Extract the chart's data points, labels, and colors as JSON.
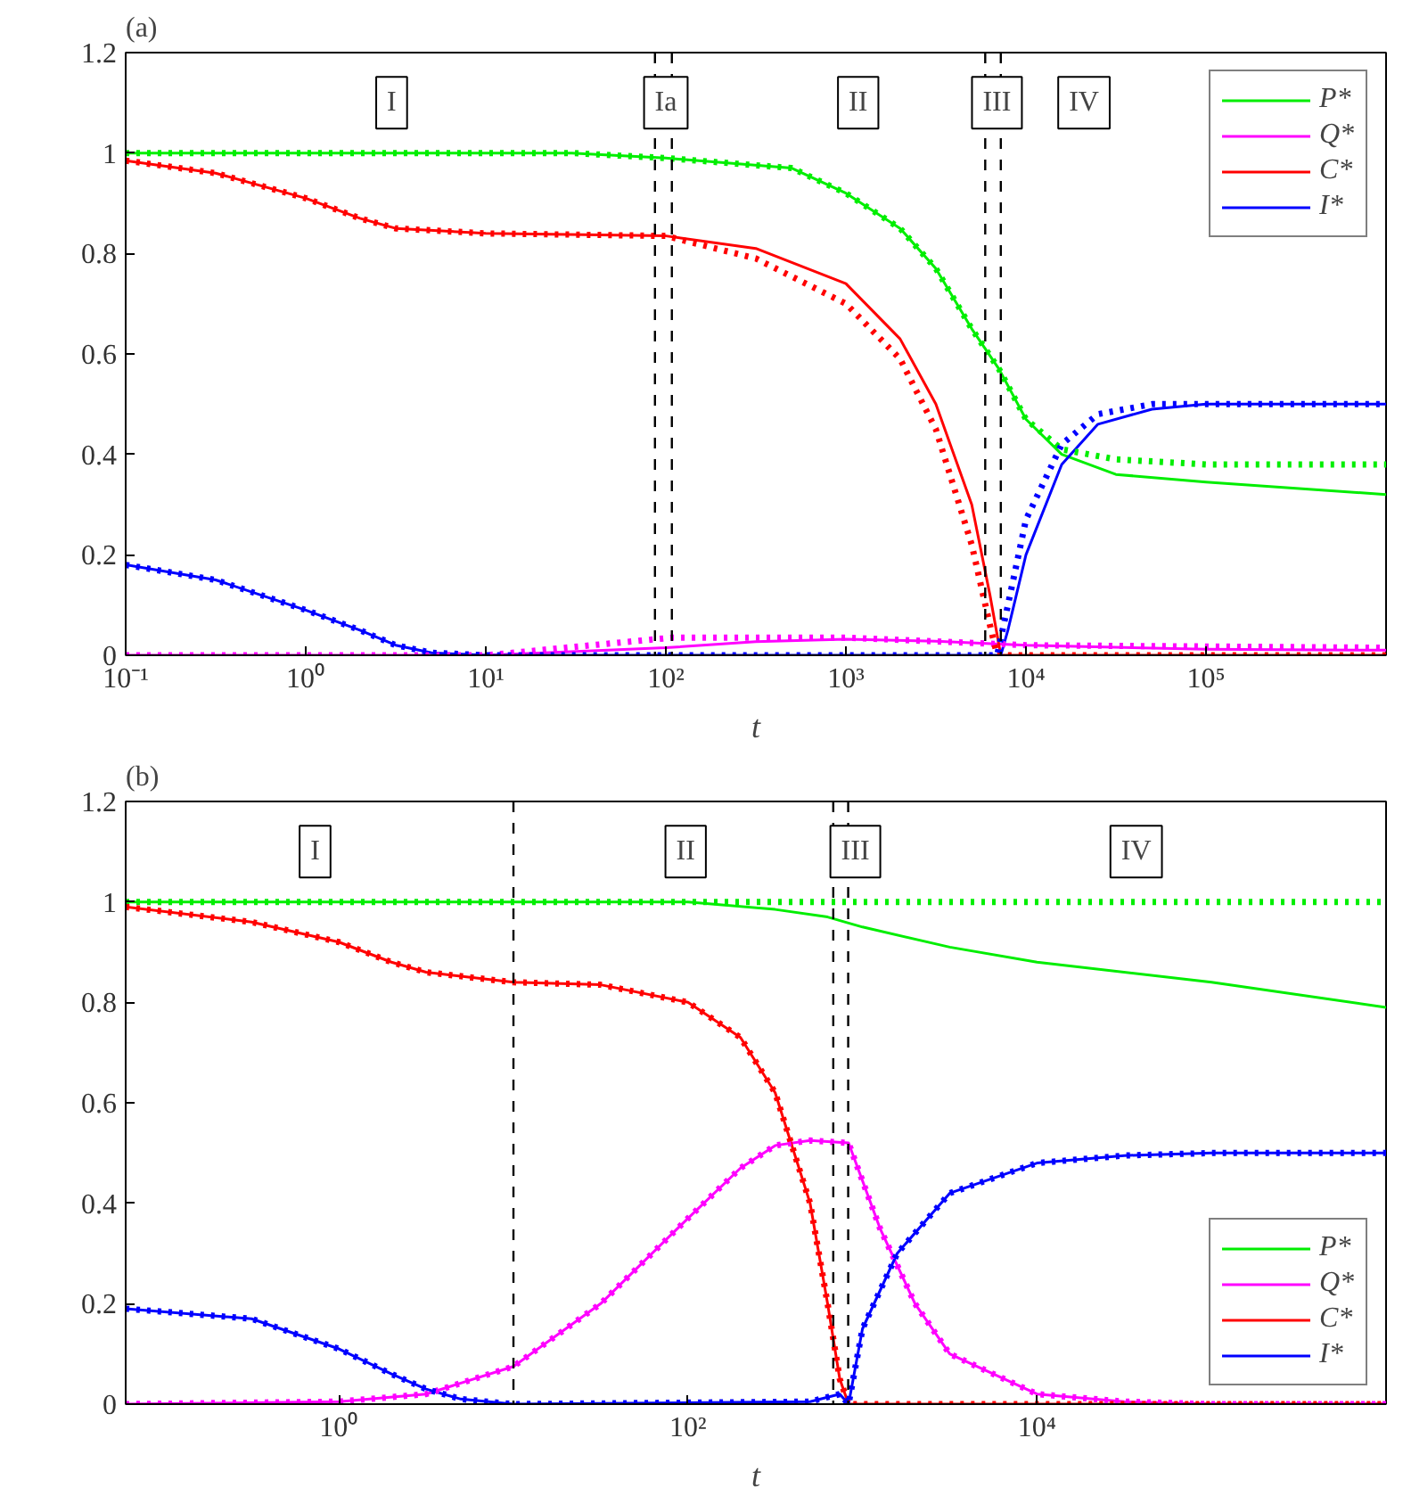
{
  "chart_data": [
    {
      "type": "line",
      "title": "(a)",
      "xlabel": "t",
      "log": "x",
      "grid": false,
      "legend": "top right",
      "xlim": [
        0.1,
        1000000
      ],
      "xticks": [
        {
          "value": 0.1,
          "label": "10⁻¹"
        },
        {
          "value": 1,
          "label": "10⁰"
        },
        {
          "value": 10,
          "label": "10¹"
        },
        {
          "value": 100,
          "label": "10²"
        },
        {
          "value": 1000,
          "label": "10³"
        },
        {
          "value": 10000,
          "label": "10⁴"
        },
        {
          "value": 100000,
          "label": "10⁵"
        }
      ],
      "ylim": [
        0,
        1.2
      ],
      "yticks": [
        0,
        0.2,
        0.4,
        0.6,
        0.8,
        1,
        1.2
      ],
      "ref_lines": [
        {
          "axis": "x",
          "value": 87,
          "line_style": "dashed",
          "color": "#000000"
        },
        {
          "axis": "x",
          "value": 108,
          "line_style": "dashed",
          "color": "#000000"
        },
        {
          "axis": "x",
          "value": 5940,
          "line_style": "dashed",
          "color": "#000000"
        },
        {
          "axis": "x",
          "value": 7250,
          "line_style": "dashed",
          "color": "#000000"
        }
      ],
      "annotations": [
        {
          "text": "I",
          "x": 3,
          "y": 1.1
        },
        {
          "text": "Ia",
          "x": 100,
          "y": 1.1
        },
        {
          "text": "II",
          "x": 1170,
          "y": 1.1
        },
        {
          "text": "III",
          "x": 6900,
          "y": 1.1
        },
        {
          "text": "IV",
          "x": 21000,
          "y": 1.1
        }
      ],
      "series": [
        {
          "name": "P*",
          "color": "#00ee00",
          "line_style": "solid",
          "x": [
            0.1,
            1,
            30,
            100,
            500,
            1000,
            2000,
            3160,
            5000,
            7080,
            10000,
            15800,
            31600,
            100000,
            1000000
          ],
          "values": [
            1,
            1,
            1,
            0.99,
            0.97,
            0.92,
            0.85,
            0.77,
            0.65,
            0.57,
            0.47,
            0.4,
            0.36,
            0.345,
            0.32
          ]
        },
        {
          "name": "Q*",
          "color": "#ff00ff",
          "line_style": "solid",
          "x": [
            0.1,
            10,
            100,
            316,
            1000,
            3160,
            10000,
            100000,
            1000000
          ],
          "values": [
            0,
            0,
            0.015,
            0.027,
            0.032,
            0.028,
            0.02,
            0.012,
            0.01
          ]
        },
        {
          "name": "C*",
          "color": "#ff0000",
          "line_style": "solid",
          "x": [
            0.1,
            0.316,
            1,
            2,
            3.16,
            10,
            100,
            316,
            1000,
            2000,
            3160,
            5000,
            6310,
            7250,
            1000000
          ],
          "values": [
            0.985,
            0.96,
            0.91,
            0.87,
            0.85,
            0.84,
            0.835,
            0.81,
            0.74,
            0.63,
            0.5,
            0.3,
            0.12,
            0,
            0
          ]
        },
        {
          "name": "I*",
          "color": "#0000ff",
          "line_style": "solid",
          "x": [
            0.1,
            0.316,
            1,
            2,
            3.16,
            5,
            10,
            7250,
            7940,
            10000,
            15800,
            25100,
            50100,
            100000,
            1000000
          ],
          "values": [
            0.18,
            0.15,
            0.09,
            0.05,
            0.02,
            0.005,
            0,
            0,
            0.05,
            0.2,
            0.38,
            0.46,
            0.49,
            0.5,
            0.5
          ]
        },
        {
          "color": "#00ee00",
          "line_style": "dotted",
          "x": [
            0.1,
            1,
            30,
            100,
            500,
            1000,
            2000,
            3160,
            5000,
            7080,
            10000,
            15800,
            31600,
            100000,
            1000000
          ],
          "values": [
            1,
            1,
            1,
            0.99,
            0.97,
            0.92,
            0.85,
            0.77,
            0.65,
            0.57,
            0.47,
            0.41,
            0.39,
            0.38,
            0.38
          ]
        },
        {
          "color": "#ff00ff",
          "line_style": "dotted",
          "x": [
            0.1,
            10,
            108,
            1000,
            10000,
            1000000
          ],
          "values": [
            0,
            0,
            0.035,
            0.035,
            0.02,
            0.015
          ]
        },
        {
          "color": "#ff0000",
          "line_style": "dotted",
          "x": [
            0.1,
            0.316,
            1,
            2,
            3.16,
            10,
            100,
            316,
            1000,
            2000,
            3160,
            5000,
            6310,
            6920,
            1000000
          ],
          "values": [
            0.985,
            0.96,
            0.91,
            0.87,
            0.85,
            0.84,
            0.835,
            0.79,
            0.7,
            0.59,
            0.45,
            0.22,
            0.06,
            0,
            0
          ]
        },
        {
          "color": "#0000ff",
          "line_style": "dotted",
          "x": [
            0.1,
            0.316,
            1,
            2,
            3.16,
            5,
            10,
            6920,
            7940,
            10000,
            15800,
            25100,
            50100,
            100000,
            1000000
          ],
          "values": [
            0.18,
            0.15,
            0.09,
            0.05,
            0.02,
            0.005,
            0,
            0,
            0.1,
            0.27,
            0.42,
            0.48,
            0.5,
            0.5,
            0.5
          ]
        }
      ]
    },
    {
      "type": "line",
      "title": "(b)",
      "xlabel": "t",
      "log": "x",
      "grid": false,
      "legend": "bottom right",
      "xlim": [
        0.06,
        1000000
      ],
      "xticks": [
        {
          "value": 1,
          "label": "10⁰"
        },
        {
          "value": 100,
          "label": "10²"
        },
        {
          "value": 10000,
          "label": "10⁴"
        }
      ],
      "ylim": [
        0,
        1.2
      ],
      "yticks": [
        0,
        0.2,
        0.4,
        0.6,
        0.8,
        1,
        1.2
      ],
      "ref_lines": [
        {
          "axis": "x",
          "value": 10,
          "line_style": "dashed",
          "color": "#000000"
        },
        {
          "axis": "x",
          "value": 680,
          "line_style": "dashed",
          "color": "#000000"
        },
        {
          "axis": "x",
          "value": 828,
          "line_style": "dashed",
          "color": "#000000"
        }
      ],
      "annotations": [
        {
          "text": "I",
          "x": 0.73,
          "y": 1.1
        },
        {
          "text": "II",
          "x": 97,
          "y": 1.1
        },
        {
          "text": "III",
          "x": 910,
          "y": 1.1
        },
        {
          "text": "IV",
          "x": 37000,
          "y": 1.1
        }
      ],
      "series": [
        {
          "name": "P*",
          "color": "#00ee00",
          "line_style": "solid",
          "x": [
            0.06,
            10,
            100,
            316,
            631,
            1000,
            3160,
            10000,
            100000,
            1000000
          ],
          "values": [
            1,
            1,
            1,
            0.985,
            0.97,
            0.95,
            0.91,
            0.88,
            0.84,
            0.79
          ]
        },
        {
          "name": "Q*",
          "color": "#ff00ff",
          "line_style": "solid",
          "x": [
            0.06,
            1,
            3.16,
            10,
            31.6,
            100,
            200,
            316,
            501,
            832,
            1260,
            2000,
            3160,
            10000,
            31600,
            100000,
            1000000
          ],
          "values": [
            0,
            0.005,
            0.02,
            0.075,
            0.2,
            0.37,
            0.47,
            0.515,
            0.525,
            0.52,
            0.35,
            0.2,
            0.1,
            0.02,
            0.005,
            0,
            0
          ]
        },
        {
          "name": "C*",
          "color": "#ff0000",
          "line_style": "solid",
          "x": [
            0.06,
            0.316,
            1,
            2,
            3.16,
            10,
            31.6,
            100,
            200,
            316,
            501,
            631,
            741,
            832,
            1000000
          ],
          "values": [
            0.99,
            0.96,
            0.92,
            0.88,
            0.86,
            0.84,
            0.835,
            0.8,
            0.73,
            0.62,
            0.4,
            0.2,
            0.05,
            0,
            0
          ]
        },
        {
          "name": "I*",
          "color": "#0000ff",
          "line_style": "solid",
          "x": [
            0.06,
            0.316,
            1,
            2,
            3.16,
            5,
            10,
            501,
            741,
            832,
            1000,
            1580,
            3160,
            10000,
            31600,
            100000,
            1000000
          ],
          "values": [
            0.19,
            0.17,
            0.11,
            0.06,
            0.03,
            0.01,
            0,
            0.005,
            0.02,
            0,
            0.15,
            0.3,
            0.42,
            0.48,
            0.495,
            0.5,
            0.5
          ]
        },
        {
          "color": "#00ee00",
          "line_style": "dotted",
          "x": [
            0.06,
            1000000
          ],
          "values": [
            1,
            1
          ]
        },
        {
          "color": "#ff00ff",
          "line_style": "dotted",
          "x": [
            0.06,
            1,
            3.16,
            10,
            31.6,
            100,
            200,
            316,
            501,
            832,
            1260,
            2000,
            3160,
            10000,
            31600,
            100000,
            1000000
          ],
          "values": [
            0,
            0.005,
            0.02,
            0.075,
            0.2,
            0.37,
            0.47,
            0.515,
            0.525,
            0.52,
            0.35,
            0.2,
            0.1,
            0.02,
            0.005,
            0,
            0
          ]
        },
        {
          "color": "#ff0000",
          "line_style": "dotted",
          "x": [
            0.06,
            0.316,
            1,
            2,
            3.16,
            10,
            31.6,
            100,
            200,
            316,
            501,
            631,
            741,
            832,
            1000000
          ],
          "values": [
            0.99,
            0.96,
            0.92,
            0.88,
            0.86,
            0.84,
            0.835,
            0.8,
            0.73,
            0.62,
            0.4,
            0.2,
            0.05,
            0,
            0
          ]
        },
        {
          "color": "#0000ff",
          "line_style": "dotted",
          "x": [
            0.06,
            0.316,
            1,
            2,
            3.16,
            5,
            10,
            501,
            741,
            832,
            1000,
            1580,
            3160,
            10000,
            31600,
            100000,
            1000000
          ],
          "values": [
            0.19,
            0.17,
            0.11,
            0.06,
            0.03,
            0.01,
            0,
            0.005,
            0.02,
            0,
            0.15,
            0.3,
            0.42,
            0.48,
            0.495,
            0.5,
            0.5
          ]
        }
      ]
    }
  ]
}
